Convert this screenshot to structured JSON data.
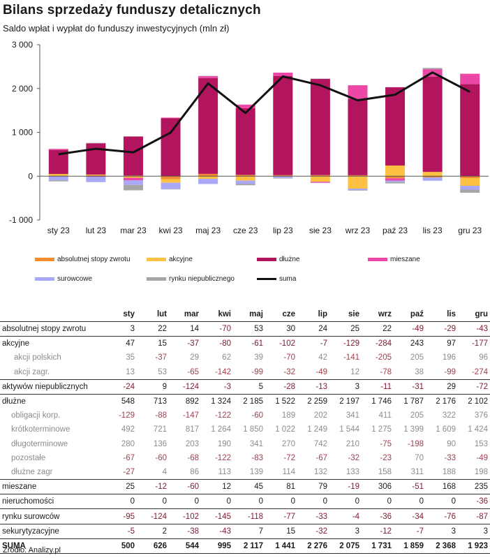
{
  "title": "Bilans sprzedaży funduszy detalicznych",
  "subtitle": "Saldo wpłat i wypłat do funduszy inwestycyjnych (mln zł)",
  "source": "Źródło: Analizy.pl",
  "chart_data": {
    "type": "bar",
    "stacked": true,
    "categories": [
      "sty 23",
      "lut 23",
      "mar 23",
      "kwi 23",
      "maj 23",
      "cze 23",
      "lip 23",
      "sie 23",
      "wrz 23",
      "paź 23",
      "lis 23",
      "gru 23"
    ],
    "ylim": [
      -1000,
      3000
    ],
    "yticks": [
      -1000,
      0,
      1000,
      2000,
      3000
    ],
    "ytick_labels": [
      "-1 000",
      "0",
      "1 000",
      "2 000",
      "3 000"
    ],
    "grid": false,
    "legend_position": "bottom",
    "series": [
      {
        "name": "absolutnej stopy zwrotu",
        "color": "#f28a2e",
        "kind": "bar",
        "values": [
          3,
          22,
          14,
          -70,
          53,
          30,
          24,
          25,
          22,
          -49,
          -29,
          -43
        ]
      },
      {
        "name": "akcyjne",
        "color": "#fcc043",
        "kind": "bar",
        "values": [
          47,
          15,
          -37,
          -80,
          -61,
          -102,
          -7,
          -129,
          -284,
          243,
          97,
          -177
        ]
      },
      {
        "name": "dłużne",
        "color": "#b3145e",
        "kind": "bar",
        "values": [
          548,
          713,
          892,
          1324,
          2185,
          1522,
          2259,
          2197,
          1746,
          1787,
          2176,
          2102
        ]
      },
      {
        "name": "mieszane",
        "color": "#ec46a6",
        "kind": "bar",
        "values": [
          25,
          -12,
          -60,
          12,
          45,
          81,
          79,
          -19,
          306,
          -51,
          168,
          235
        ]
      },
      {
        "name": "surowcowe",
        "color": "#a9a8f6",
        "kind": "bar",
        "values": [
          -95,
          -124,
          -102,
          -145,
          -118,
          -77,
          -33,
          -4,
          -36,
          -34,
          -76,
          -87
        ]
      },
      {
        "name": "rynku niepublicznego",
        "color": "#a6a6a6",
        "kind": "bar",
        "values": [
          -24,
          9,
          -124,
          -3,
          5,
          -28,
          -13,
          3,
          -11,
          -31,
          29,
          -72
        ]
      },
      {
        "name": "suma",
        "color": "#111111",
        "kind": "line",
        "values": [
          500,
          626,
          544,
          995,
          2117,
          1441,
          2276,
          2075,
          1731,
          1859,
          2368,
          1923
        ]
      }
    ]
  },
  "table": {
    "headers": [
      "",
      "sty",
      "lut",
      "mar",
      "kwi",
      "maj",
      "cze",
      "lip",
      "sie",
      "wrz",
      "paź",
      "lis",
      "gru"
    ],
    "rows": [
      {
        "label": "absolutnej stopy zwrotu",
        "level": 0,
        "values": [
          "3",
          "22",
          "14",
          "-70",
          "53",
          "30",
          "24",
          "25",
          "22",
          "-49",
          "-29",
          "-43"
        ]
      },
      {
        "label": "akcyjne",
        "level": 0,
        "values": [
          "47",
          "15",
          "-37",
          "-80",
          "-61",
          "-102",
          "-7",
          "-129",
          "-284",
          "243",
          "97",
          "-177"
        ]
      },
      {
        "label": "akcji polskich",
        "level": 1,
        "values": [
          "35",
          "-37",
          "29",
          "62",
          "39",
          "-70",
          "42",
          "-141",
          "-205",
          "205",
          "196",
          "96"
        ]
      },
      {
        "label": "akcji zagr.",
        "level": 1,
        "values": [
          "13",
          "53",
          "-65",
          "-142",
          "-99",
          "-32",
          "-49",
          "12",
          "-78",
          "38",
          "-99",
          "-274"
        ]
      },
      {
        "label": "aktywów niepublicznych",
        "level": 0,
        "values": [
          "-24",
          "9",
          "-124",
          "-3",
          "5",
          "-28",
          "-13",
          "3",
          "-11",
          "-31",
          "29",
          "-72"
        ]
      },
      {
        "label": "dłużne",
        "level": 0,
        "values": [
          "548",
          "713",
          "892",
          "1 324",
          "2 185",
          "1 522",
          "2 259",
          "2 197",
          "1 746",
          "1 787",
          "2 176",
          "2 102"
        ]
      },
      {
        "label": "obligacji korp.",
        "level": 2,
        "values": [
          "-129",
          "-88",
          "-147",
          "-122",
          "-60",
          "189",
          "202",
          "341",
          "411",
          "205",
          "322",
          "376"
        ]
      },
      {
        "label": "krótkoterminowe",
        "level": 2,
        "values": [
          "492",
          "721",
          "817",
          "1 264",
          "1 850",
          "1 022",
          "1 249",
          "1 544",
          "1 275",
          "1 399",
          "1 609",
          "1 424"
        ]
      },
      {
        "label": "długoterminowe",
        "level": 2,
        "values": [
          "280",
          "136",
          "203",
          "190",
          "341",
          "270",
          "742",
          "210",
          "-75",
          "-198",
          "90",
          "153"
        ]
      },
      {
        "label": "pozostałe",
        "level": 2,
        "values": [
          "-67",
          "-60",
          "-68",
          "-122",
          "-83",
          "-72",
          "-67",
          "-32",
          "-23",
          "70",
          "-33",
          "-49"
        ]
      },
      {
        "label": "dłużne zagr",
        "level": 2,
        "values": [
          "-27",
          "4",
          "86",
          "113",
          "139",
          "114",
          "132",
          "133",
          "158",
          "311",
          "188",
          "198"
        ]
      },
      {
        "label": "mieszane",
        "level": 0,
        "values": [
          "25",
          "-12",
          "-60",
          "12",
          "45",
          "81",
          "79",
          "-19",
          "306",
          "-51",
          "168",
          "235"
        ]
      },
      {
        "label": "nieruchomości",
        "level": 0,
        "values": [
          "0",
          "0",
          "0",
          "0",
          "0",
          "0",
          "0",
          "0",
          "0",
          "0",
          "0",
          "-36"
        ]
      },
      {
        "label": "rynku surowców",
        "level": 0,
        "values": [
          "-95",
          "-124",
          "-102",
          "-145",
          "-118",
          "-77",
          "-33",
          "-4",
          "-36",
          "-34",
          "-76",
          "-87"
        ]
      },
      {
        "label": "sekurytyzacyjne",
        "level": 0,
        "values": [
          "-5",
          "2",
          "-38",
          "-43",
          "7",
          "15",
          "-32",
          "3",
          "-12",
          "-7",
          "3",
          "3"
        ]
      },
      {
        "label": "SUMA",
        "level": 0,
        "sum": true,
        "values": [
          "500",
          "626",
          "544",
          "995",
          "2 117",
          "1 441",
          "2 276",
          "2 075",
          "1 731",
          "1 859",
          "2 368",
          "1 923"
        ]
      }
    ]
  }
}
